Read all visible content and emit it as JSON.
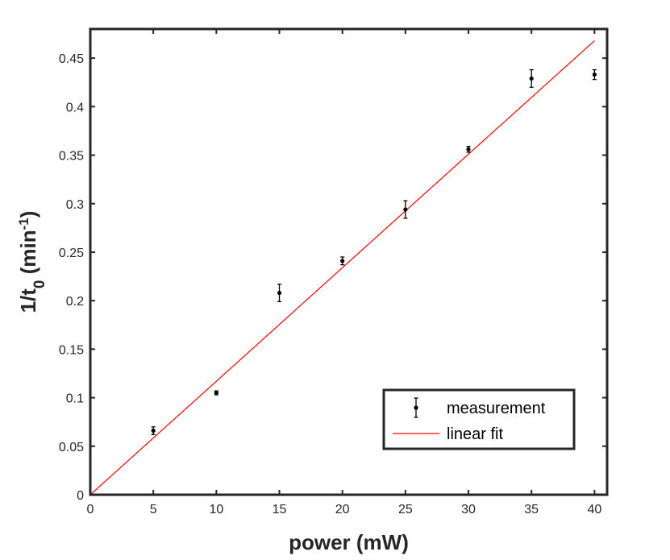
{
  "chart_data": {
    "type": "scatter",
    "xlabel": "power (mW)",
    "ylabel": {
      "base": "1/t",
      "sub": "0",
      "unit_prefix": "(min",
      "sup": "-1",
      "unit_suffix": ")"
    },
    "xlim": [
      0,
      41
    ],
    "ylim": [
      0,
      0.48
    ],
    "x_ticks": [
      0,
      5,
      10,
      15,
      20,
      25,
      30,
      35,
      40
    ],
    "x_tick_labels": [
      "0",
      "5",
      "10",
      "15",
      "20",
      "25",
      "30",
      "35",
      "40"
    ],
    "y_ticks": [
      0,
      0.05,
      0.1,
      0.15,
      0.2,
      0.25,
      0.3,
      0.35,
      0.4,
      0.45
    ],
    "y_tick_labels": [
      "0",
      "0.05",
      "0.1",
      "0.15",
      "0.2",
      "0.25",
      "0.3",
      "0.35",
      "0.4",
      "0.45"
    ],
    "grid": false,
    "legend_position": "bottom-right",
    "series": [
      {
        "name": "measurement",
        "kind": "errorbar",
        "color": "#000000",
        "x": [
          5,
          10,
          15,
          20,
          25,
          30,
          35,
          40
        ],
        "y": [
          0.066,
          0.105,
          0.208,
          0.241,
          0.294,
          0.356,
          0.429,
          0.433
        ],
        "err": [
          0.004,
          0.002,
          0.009,
          0.004,
          0.009,
          0.003,
          0.009,
          0.005
        ]
      },
      {
        "name": "linear fit",
        "kind": "line",
        "color": "#ff0000",
        "x": [
          0,
          40
        ],
        "y": [
          0,
          0.468
        ]
      }
    ]
  }
}
